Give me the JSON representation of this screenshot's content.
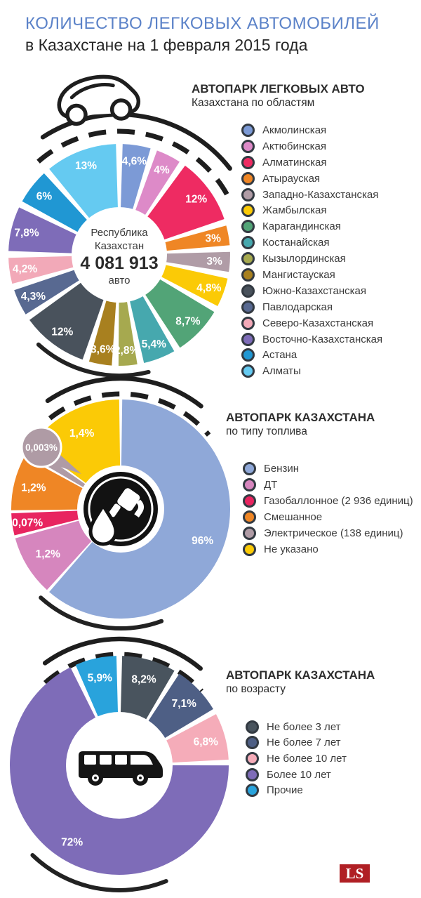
{
  "page": {
    "background": "#ffffff",
    "accent_blue": "#5B82C8",
    "text_dark": "#262626"
  },
  "header": {
    "title_line1": "КОЛИЧЕСТВО ЛЕГКОВЫХ АВТОМОБИЛЕЙ",
    "title_line2": "в Казахстане на 1 февраля 2015 года"
  },
  "footer": {
    "logo_text": "LS",
    "logo_bg": "#B01F24",
    "logo_text_color": "#ffffff"
  },
  "chart_data": [
    {
      "type": "pie",
      "title": "АВТОПАРК ЛЕГКОВЫХ АВТО",
      "subtitle": "Казахстана по областям",
      "icon": "car-icon",
      "legend_position": "right",
      "center": {
        "line1": "Республика",
        "line2": "Казахстан",
        "value": "4 081 913",
        "unit": "авто"
      },
      "series": [
        {
          "name": "Акмолинская",
          "value": 4.6,
          "label": "4,6%",
          "color": "#7C9AD6"
        },
        {
          "name": "Актюбинская",
          "value": 4.0,
          "label": "4%",
          "color": "#DD8AC8"
        },
        {
          "name": "Алматинская",
          "value": 12.0,
          "label": "12%",
          "color": "#EE2B62"
        },
        {
          "name": "Атырауская",
          "value": 3.0,
          "label": "3%",
          "color": "#EF8625"
        },
        {
          "name": "Западно-Казахстанская",
          "value": 3.0,
          "label": "3%",
          "color": "#B09CA6"
        },
        {
          "name": "Жамбылская",
          "value": 4.8,
          "label": "4,8%",
          "color": "#FBCA06"
        },
        {
          "name": "Карагандинская",
          "value": 8.7,
          "label": "8,7%",
          "color": "#52A477"
        },
        {
          "name": "Костанайская",
          "value": 5.4,
          "label": "5,4%",
          "color": "#46A8AE"
        },
        {
          "name": "Кызылординская",
          "value": 2.8,
          "label": "2,8%",
          "color": "#A6A94F"
        },
        {
          "name": "Мангистауская",
          "value": 3.6,
          "label": "3,6%",
          "color": "#A8801F"
        },
        {
          "name": "Южно-Казахстанская",
          "value": 12.0,
          "label": "12%",
          "color": "#49525C"
        },
        {
          "name": "Павлодарская",
          "value": 4.3,
          "label": "4,3%",
          "color": "#586991"
        },
        {
          "name": "Северо-Казахстанская",
          "value": 4.2,
          "label": "4,2%",
          "color": "#F2A9B8"
        },
        {
          "name": "Восточно-Казахстанская",
          "value": 7.8,
          "label": "7,8%",
          "color": "#7E6CB8"
        },
        {
          "name": "Астана",
          "value": 6.0,
          "label": "6%",
          "color": "#2097D3"
        },
        {
          "name": "Алматы",
          "value": 13.0,
          "label": "13%",
          "color": "#65CAF1"
        }
      ]
    },
    {
      "type": "pie",
      "title": "АВТОПАРК КАЗАХСТАНА",
      "subtitle": "по типу топлива",
      "icon": "fuel-nozzle-icon",
      "legend_position": "right",
      "series": [
        {
          "name": "Бензин",
          "value": 96.0,
          "label": "96%",
          "color": "#8FA8D8"
        },
        {
          "name": "ДТ",
          "value": 1.2,
          "label": "1,2%",
          "color": "#D686BE"
        },
        {
          "name": "Газобаллонное (2 936 единиц)",
          "value": 0.07,
          "label": "0,07%",
          "color": "#E82560"
        },
        {
          "name": "Смешанное",
          "value": 1.2,
          "label": "1,2%",
          "color": "#EF8625"
        },
        {
          "name": "Электрическое (138 единиц)",
          "value": 0.003,
          "label": "0,003%",
          "color": "#AF9BA5",
          "callout": true
        },
        {
          "name": "Не указано",
          "value": 1.4,
          "label": "1,4%",
          "color": "#FBCA06"
        }
      ]
    },
    {
      "type": "pie",
      "title": "АВТОПАРК КАЗАХСТАНА",
      "subtitle": "по возрасту",
      "icon": "van-icon",
      "legend_position": "right",
      "series": [
        {
          "name": "Не более 3 лет",
          "value": 8.2,
          "label": "8,2%",
          "color": "#49545E"
        },
        {
          "name": "Не более 7 лет",
          "value": 7.1,
          "label": "7,1%",
          "color": "#4E5F85"
        },
        {
          "name": "Не более 10 лет",
          "value": 6.8,
          "label": "6,8%",
          "color": "#F5ACB9"
        },
        {
          "name": "Более 10 лет",
          "value": 72.0,
          "label": "72%",
          "color": "#7E6CB8"
        },
        {
          "name": "Прочие",
          "value": 5.9,
          "label": "5,9%",
          "color": "#29A3DC"
        }
      ]
    }
  ]
}
